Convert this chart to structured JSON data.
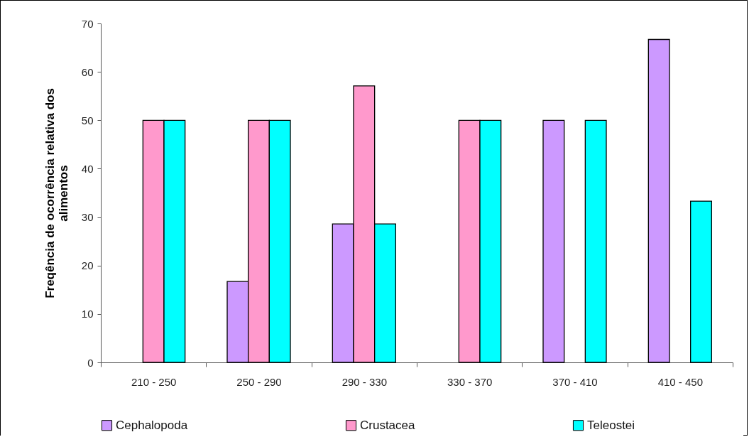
{
  "chart_data": {
    "type": "bar",
    "ylabel": "Freqência de ocorrência relativa dos alimentos",
    "categories": [
      "210  - 250",
      "250 - 290",
      "290 - 330",
      "330 - 370",
      "370 - 410",
      "410 - 450"
    ],
    "series": [
      {
        "name": "Cephalopoda",
        "color": "#cc99ff",
        "values": [
          null,
          16.7,
          28.6,
          null,
          50,
          66.7
        ]
      },
      {
        "name": "Crustacea",
        "color": "#ff99cc",
        "values": [
          50,
          50,
          57.1,
          50,
          null,
          null
        ]
      },
      {
        "name": "Teleostei",
        "color": "#00ffff",
        "values": [
          50,
          50,
          28.6,
          50,
          50,
          33.3
        ]
      }
    ],
    "ylim": [
      0,
      70
    ],
    "yticks": [
      0,
      10,
      20,
      30,
      40,
      50,
      60,
      70
    ],
    "grid": false,
    "legend": "bottom"
  }
}
